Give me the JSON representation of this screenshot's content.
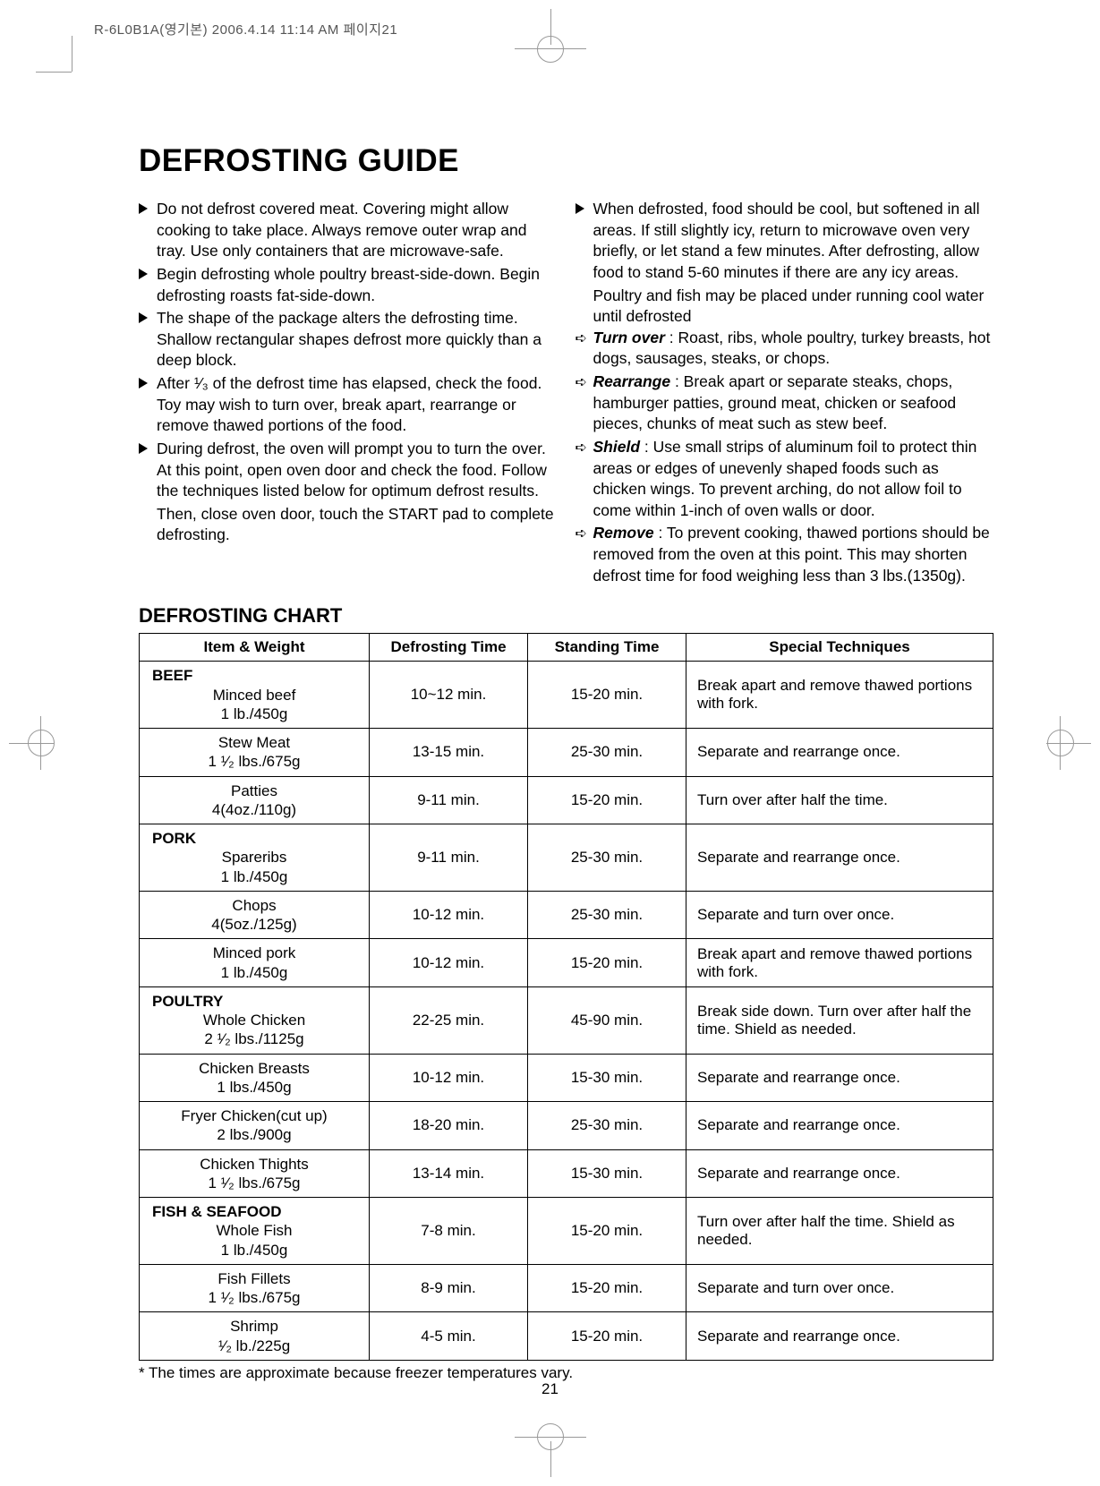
{
  "header": "R-6L0B1A(영기본)  2006.4.14 11:14 AM  페이지21",
  "title": "DEFROSTING GUIDE",
  "left_bullets": [
    "Do not defrost covered meat. Covering might allow cooking to take place. Always remove outer wrap and tray. Use only containers that are microwave-safe.",
    "Begin defrosting whole poultry breast-side-down. Begin defrosting roasts fat-side-down.",
    "The shape of the package alters the defrosting time. Shallow rectangular shapes defrost more quickly than a deep block.",
    "",
    "During defrost, the oven will prompt you to turn the over. At this point, open oven door and check the food. Follow the techniques listed below for optimum defrost results."
  ],
  "left_bullet_frac": {
    "prefix": "After ",
    "suffix": " of the defrost time has elapsed, check the food. Toy may wish to turn over, break apart, rearrange or remove thawed portions of the food."
  },
  "left_tail": "Then, close oven door, touch the START pad to complete defrosting.",
  "right_main": "When defrosted, food should be cool, but softened in all areas. If still slightly icy, return to microwave oven very briefly, or let stand a few minutes. After defrosting, allow food to stand 5-60 minutes if there are any icy areas.",
  "right_main_tail": "Poultry and fish may be placed under running cool water until defrosted",
  "right_subs": [
    {
      "label": "Turn over",
      "text": " : Roast, ribs, whole poultry, turkey breasts, hot dogs, sausages, steaks, or chops."
    },
    {
      "label": "Rearrange",
      "text": " : Break apart or separate steaks, chops, hamburger patties, ground meat, chicken or seafood pieces, chunks of meat such as stew beef."
    },
    {
      "label": "Shield",
      "text": " : Use small strips of aluminum foil to protect thin areas or edges of unevenly shaped foods such as chicken wings. To prevent arching, do not allow foil to come within 1-inch of oven walls or door."
    },
    {
      "label": "Remove",
      "text": " : To prevent cooking, thawed portions should be removed from the oven at this point. This may shorten defrost time for food weighing less than 3 lbs.(1350g)."
    }
  ],
  "chart_title": "DEFROSTING CHART",
  "columns": [
    "Item & Weight",
    "Defrosting Time",
    "Standing Time",
    "Special Techniques"
  ],
  "categories": [
    {
      "name": "BEEF",
      "rows": [
        {
          "item1": "Minced beef",
          "item2": "1 lb./450g",
          "dt": "10~12 min.",
          "st": "15-20 min.",
          "tech": "Break apart and remove thawed portions with fork."
        },
        {
          "item1": "Stew Meat",
          "item2_pre": "1 ",
          "item2_frac": "half",
          "item2_post": " lbs./675g",
          "dt": "13-15 min.",
          "st": "25-30 min.",
          "tech": "Separate and rearrange once."
        },
        {
          "item1": "Patties",
          "item2": "4(4oz./110g)",
          "dt": "9-11 min.",
          "st": "15-20 min.",
          "tech": "Turn over after half the time."
        }
      ]
    },
    {
      "name": "PORK",
      "rows": [
        {
          "item1": "Spareribs",
          "item2": "1 lb./450g",
          "dt": "9-11 min.",
          "st": "25-30 min.",
          "tech": "Separate and rearrange once."
        },
        {
          "item1": "Chops",
          "item2": "4(5oz./125g)",
          "dt": "10-12 min.",
          "st": "25-30 min.",
          "tech": "Separate and turn over once."
        },
        {
          "item1": "Minced pork",
          "item2": "1 lb./450g",
          "dt": "10-12 min.",
          "st": "15-20 min.",
          "tech": "Break apart and remove thawed portions with fork."
        }
      ]
    },
    {
      "name": "POULTRY",
      "rows": [
        {
          "item1": "Whole Chicken",
          "item2_pre": "2 ",
          "item2_frac": "half",
          "item2_post": " lbs./1125g",
          "dt": "22-25 min.",
          "st": "45-90 min.",
          "tech": "Break side down. Turn over after half the time. Shield as needed."
        },
        {
          "item1": "Chicken Breasts",
          "item2": "1 lbs./450g",
          "dt": "10-12 min.",
          "st": "15-30 min.",
          "tech": "Separate and rearrange once."
        },
        {
          "item1": "Fryer Chicken(cut up)",
          "item2": "2 lbs./900g",
          "dt": "18-20 min.",
          "st": "25-30 min.",
          "tech": "Separate and rearrange once."
        },
        {
          "item1": "Chicken Thights",
          "item2_pre": "1 ",
          "item2_frac": "half",
          "item2_post": " lbs./675g",
          "dt": "13-14 min.",
          "st": "15-30 min.",
          "tech": "Separate and rearrange once."
        }
      ]
    },
    {
      "name": "FISH & SEAFOOD",
      "rows": [
        {
          "item1": "Whole Fish",
          "item2": "1 lb./450g",
          "dt": "7-8 min.",
          "st": "15-20 min.",
          "tech": "Turn over after half the time. Shield as needed."
        },
        {
          "item1": "Fish Fillets",
          "item2_pre": "1 ",
          "item2_frac": "half",
          "item2_post": " lbs./675g",
          "dt": "8-9 min.",
          "st": "15-20 min.",
          "tech": "Separate and turn over once."
        },
        {
          "item1": "Shrimp",
          "item2_pre": "",
          "item2_frac": "half",
          "item2_post": " lb./225g",
          "dt": "4-5 min.",
          "st": "15-20 min.",
          "tech": "Separate and rearrange once."
        }
      ]
    }
  ],
  "footnote": "* The times are approximate because freezer temperatures vary.",
  "page_number": "21",
  "colors": {
    "text": "#000000",
    "bg": "#ffffff",
    "crop": "#999999"
  },
  "fonts": {
    "body_size_pt": 13,
    "h1_size_pt": 26,
    "h2_size_pt": 16
  }
}
